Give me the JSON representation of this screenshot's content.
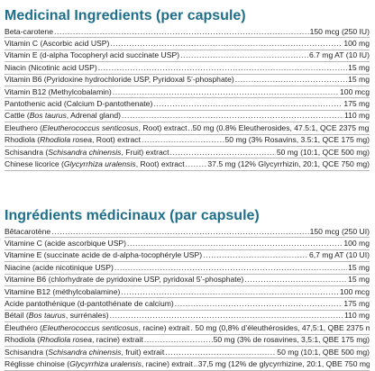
{
  "colors": {
    "title": "#1f6f8b",
    "text": "#1f1f1f",
    "rule": "#b9b9b9"
  },
  "english": {
    "title": "Medicinal Ingredients (per capsule)",
    "rows": [
      {
        "parts": [
          {
            "t": "Beta-carotene"
          }
        ],
        "value": "150 mcg (250 IU)"
      },
      {
        "parts": [
          {
            "t": "Vitamin C (Ascorbic acid USP)"
          }
        ],
        "value": "100 mg"
      },
      {
        "parts": [
          {
            "t": "Vitamin E (d-alpha Tocopheryl acid succinate USP)"
          }
        ],
        "value": "6.7 mg AT (10 IU)"
      },
      {
        "parts": [
          {
            "t": "Niacin (Nicotinic acid USP)"
          }
        ],
        "value": "15 mg"
      },
      {
        "parts": [
          {
            "t": "Vitamin B6 (Pyridoxine hydrochloride USP, Pyridoxal 5’-phosphate)"
          }
        ],
        "value": "15 mg"
      },
      {
        "parts": [
          {
            "t": "Vitamin B12 (Methylcobalamin)"
          }
        ],
        "value": "100 mcg"
      },
      {
        "parts": [
          {
            "t": "Pantothenic acid (Calcium D-pantothenate)"
          }
        ],
        "value": "175 mg"
      },
      {
        "parts": [
          {
            "t": "Cattle ("
          },
          {
            "t": "Bos taurus",
            "i": true
          },
          {
            "t": ", Adrenal gland)"
          }
        ],
        "value": "110 mg"
      },
      {
        "parts": [
          {
            "t": "Eleuthero ("
          },
          {
            "t": "Eleutherococcus senticosus",
            "i": true
          },
          {
            "t": ", Root) extract"
          }
        ],
        "value": "50 mg (0.8% Eleutherosides, 47.5:1, QCE 2375 mg)"
      },
      {
        "parts": [
          {
            "t": "Rhodiola ("
          },
          {
            "t": "Rhodiola rosea",
            "i": true
          },
          {
            "t": ", Root) extract"
          }
        ],
        "value": "50 mg (3% Rosavins, 3.5:1, QCE 175 mg)"
      },
      {
        "parts": [
          {
            "t": "Schisandra ("
          },
          {
            "t": "Schisandra chinensis",
            "i": true
          },
          {
            "t": ", Fruit) extract"
          }
        ],
        "value": "50 mg (10:1, QCE 500 mg)"
      },
      {
        "parts": [
          {
            "t": "Chinese licorice ("
          },
          {
            "t": "Glycyrrhiza uralensis",
            "i": true
          },
          {
            "t": ", Root) extract"
          }
        ],
        "value": "37.5 mg (12% Glycyrrhizin, 20:1, QCE 750 mg)"
      }
    ]
  },
  "french": {
    "title": "Ingrédients médicinaux (par capsule)",
    "rows": [
      {
        "parts": [
          {
            "t": "Bêtacarotène"
          }
        ],
        "value": "150 mcg (250 UI)"
      },
      {
        "parts": [
          {
            "t": "Vitamine C (acide ascorbique USP)"
          }
        ],
        "value": "100 mg"
      },
      {
        "parts": [
          {
            "t": "Vitamine E (succinate acide de d-alpha-tocophéryle USP)"
          }
        ],
        "value": "6,7 mg AT (10 UI)"
      },
      {
        "parts": [
          {
            "t": "Niacine (acide nicotinique USP)"
          }
        ],
        "value": "15 mg"
      },
      {
        "parts": [
          {
            "t": "Vitamine B6 (chlorhydrate de pyridoxine USP, pyridoxal 5’-phosphate)"
          }
        ],
        "value": "15 mg"
      },
      {
        "parts": [
          {
            "t": "Vitamine B12 (méthylcobalamine)"
          }
        ],
        "value": "100 mcg"
      },
      {
        "parts": [
          {
            "t": "Acide pantothénique (d-pantothénate de calcium)"
          }
        ],
        "value": "175 mg"
      },
      {
        "parts": [
          {
            "t": "Bétail ("
          },
          {
            "t": "Bos taurus",
            "i": true
          },
          {
            "t": ", surrénales)"
          }
        ],
        "value": "110 mg"
      },
      {
        "parts": [
          {
            "t": "Éleuthéro ("
          },
          {
            "t": "Eleutherococcus senticosus",
            "i": true
          },
          {
            "t": ", racine) extrait"
          }
        ],
        "value": "50 mg (0,8% d’éleuthérosides, 47,5:1, QBE 2375 mg)"
      },
      {
        "parts": [
          {
            "t": "Rhodiola ("
          },
          {
            "t": "Rhodiola rosea",
            "i": true
          },
          {
            "t": ", racine) extrait"
          }
        ],
        "value": "50 mg (3% de rosavines, 3,5:1, QBE 175 mg)"
      },
      {
        "parts": [
          {
            "t": "Schisandra ("
          },
          {
            "t": "Schisandra chinensis",
            "i": true
          },
          {
            "t": ", fruit) extrait"
          }
        ],
        "value": "50 mg (10:1, QBE 500 mg)"
      },
      {
        "parts": [
          {
            "t": "Réglisse chinoise ("
          },
          {
            "t": "Glycyrrhiza uralensis",
            "i": true
          },
          {
            "t": ", racine) extrait"
          }
        ],
        "value": "37,5 mg (12% de glycyrrhizine, 20:1, QBE 750 mg)"
      }
    ]
  }
}
